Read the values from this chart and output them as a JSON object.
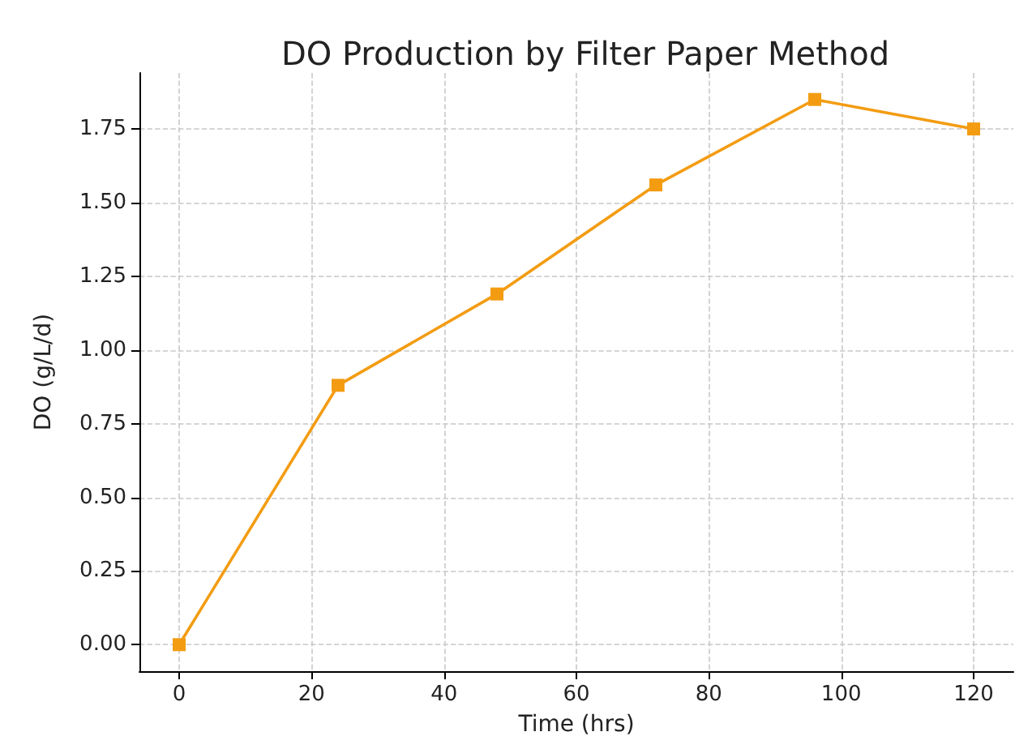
{
  "chart_data": {
    "type": "line",
    "title": "DO Production by Filter Paper Method",
    "xlabel": "Time (hrs)",
    "ylabel": "DO (g/L/d)",
    "x": [
      0,
      24,
      48,
      72,
      96,
      120
    ],
    "series": [
      {
        "color": "#f39c12",
        "values": [
          0,
          0.88,
          1.19,
          1.56,
          1.85,
          1.75
        ]
      }
    ],
    "xlim": [
      -6,
      126
    ],
    "xticks": [
      0,
      20,
      40,
      60,
      80,
      100,
      120
    ],
    "ylim": [
      -0.09,
      1.94
    ],
    "yticks": [
      {
        "value": 0,
        "label": "0.00"
      },
      {
        "value": 0.25,
        "label": "0.25"
      },
      {
        "value": 0.5,
        "label": "0.50"
      },
      {
        "value": 0.75,
        "label": "0.75"
      },
      {
        "value": 1,
        "label": "1.00"
      },
      {
        "value": 1.25,
        "label": "1.25"
      },
      {
        "value": 1.5,
        "label": "1.50"
      },
      {
        "value": 1.75,
        "label": "1.75"
      }
    ],
    "grid": true,
    "marker": "square",
    "line_style": "solid"
  }
}
